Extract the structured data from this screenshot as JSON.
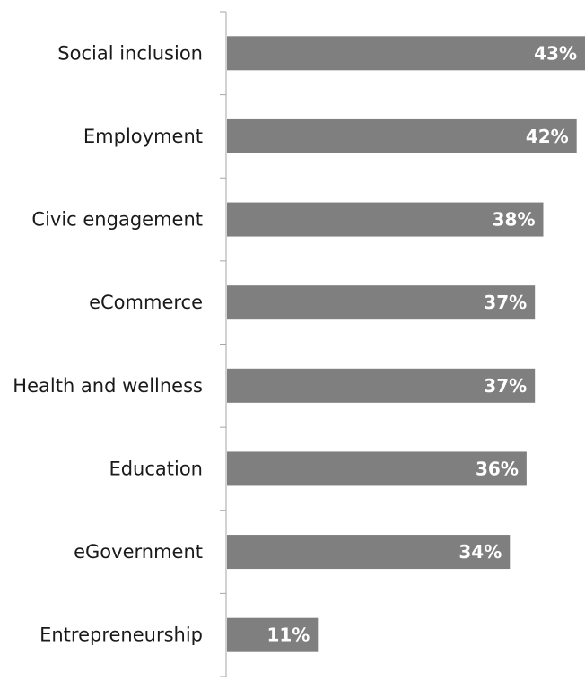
{
  "chart_data": {
    "type": "bar",
    "orientation": "horizontal",
    "categories": [
      "Social inclusion",
      "Employment",
      "Civic engagement",
      "eCommerce",
      "Health and wellness",
      "Education",
      "eGovernment",
      "Entrepreneurship"
    ],
    "values": [
      43,
      42,
      38,
      37,
      37,
      36,
      34,
      11
    ],
    "value_labels": [
      "43%",
      "42%",
      "38%",
      "37%",
      "37%",
      "36%",
      "34%",
      "11%"
    ],
    "unit": "%",
    "xlim": [
      0,
      43
    ],
    "bar_color": "#7f7f7f",
    "axis_color": "#a6a6a6",
    "grid": false,
    "legend": "none"
  }
}
